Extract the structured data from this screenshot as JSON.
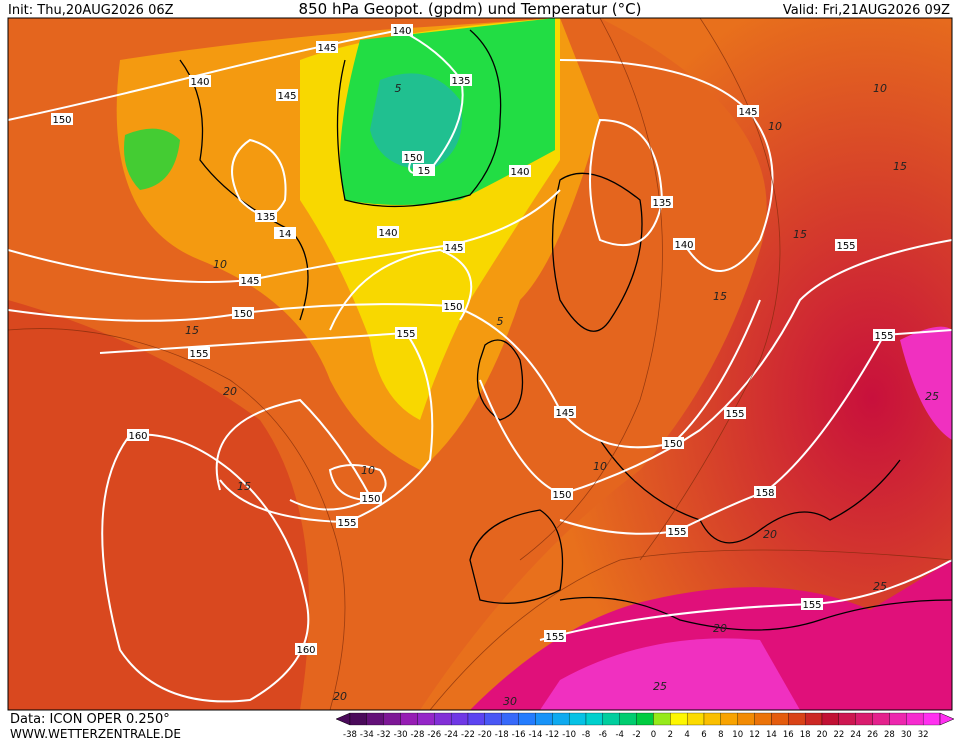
{
  "header": {
    "init": "Init: Thu,20AUG2026 06Z",
    "title": "850 hPa Geopot. (gpdm) und Temperatur (°C)",
    "valid": "Valid: Fri,21AUG2026 09Z"
  },
  "map": {
    "geopotential_labels": [
      "140",
      "145",
      "140",
      "145",
      "135",
      "150",
      "150",
      "15",
      "140",
      "135",
      "14",
      "140",
      "145",
      "135",
      "140",
      "145",
      "155",
      "145",
      "150",
      "150",
      "155",
      "155",
      "155",
      "145",
      "155",
      "160",
      "150",
      "150",
      "150",
      "155",
      "155",
      "158",
      "155",
      "155",
      "160"
    ],
    "temperature_labels": [
      "5",
      "5",
      "10",
      "10",
      "10",
      "15",
      "15",
      "15",
      "15",
      "10",
      "10",
      "15",
      "20",
      "20",
      "25",
      "25",
      "30",
      "20",
      "25",
      "20"
    ]
  },
  "footer": {
    "source": "Data: ICON OPER 0.250°",
    "site": "WWW.WETTERZENTRALE.DE"
  },
  "colorbar": {
    "labels": [
      "-38",
      "-34",
      "-32",
      "-30",
      "-28",
      "-26",
      "-24",
      "-22",
      "-20",
      "-18",
      "-16",
      "-14",
      "-12",
      "-10",
      "-8",
      "-6",
      "-4",
      "-2",
      "0",
      "2",
      "4",
      "6",
      "8",
      "10",
      "12",
      "14",
      "16",
      "18",
      "20",
      "22",
      "24",
      "26",
      "28",
      "30",
      "32"
    ]
  }
}
